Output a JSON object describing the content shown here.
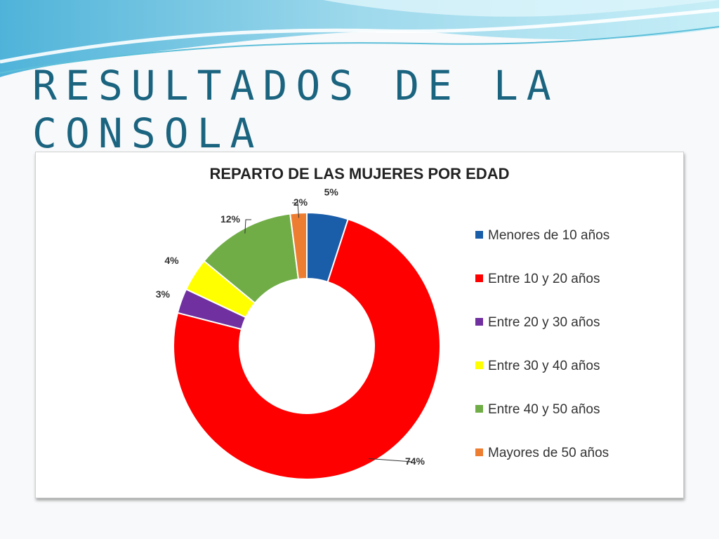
{
  "slide": {
    "title": "RESULTADOS DE LA CONSOLA"
  },
  "chart_data": {
    "type": "pie",
    "title": "REPARTO DE LAS MUJERES POR EDAD",
    "categories": [
      "Menores de 10 años",
      "Entre 10 y 20 años",
      "Entre 20 y 30 años",
      "Entre 30 y 40 años",
      "Entre 40 y 50 años",
      "Mayores de 50 años"
    ],
    "values": [
      5,
      74,
      3,
      4,
      12,
      2
    ],
    "labels": [
      "5%",
      "74%",
      "3%",
      "4%",
      "12%",
      "2%"
    ],
    "colors": [
      "#1a5da8",
      "#ff0000",
      "#7030a0",
      "#ffff00",
      "#70ad47",
      "#ed7d31"
    ],
    "legend_position": "right",
    "style": "doughnut"
  }
}
